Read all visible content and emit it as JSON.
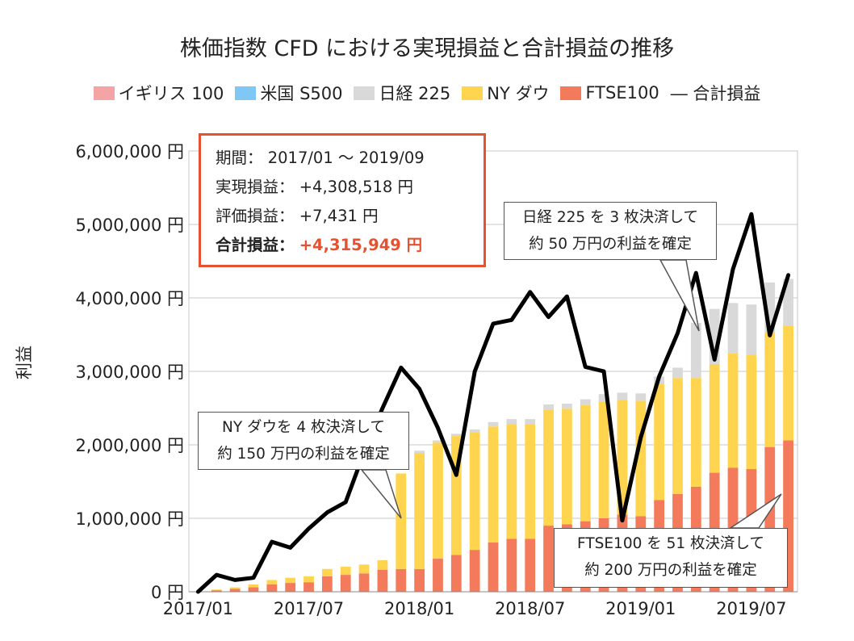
{
  "title": "株価指数 CFD における実現損益と合計損益の推移",
  "legend": {
    "uk100": "イギリス 100",
    "us500": "米国 S500",
    "nikkei": "日経 225",
    "ny": "NY ダウ",
    "ftse": "FTSE100",
    "total": "― 合計損益"
  },
  "ylabel": "利益",
  "summary": {
    "period_label": "期間：",
    "period_value": "2017/01 ～ 2019/09",
    "realized_label": "実現損益：",
    "realized_value": "+4,308,518 円",
    "unrealized_label": "評価損益：",
    "unrealized_value": "+7,431 円",
    "total_label": "合計損益：",
    "total_value": "+4,315,949 円"
  },
  "callouts": {
    "nikkei_line1": "日経 225 を 3 枚決済して",
    "nikkei_line2": "約 50 万円の利益を確定",
    "ny_line1": "NY ダウを 4 枚決済して",
    "ny_line2": "約 150 万円の利益を確定",
    "ftse_line1": "FTSE100 を 51 枚決済して",
    "ftse_line2": "約 200 万円の利益を確定"
  },
  "colors": {
    "uk100": "#f4a4a4",
    "us500": "#7fc8f5",
    "nikkei": "#d9d9d9",
    "ny": "#ffd54f",
    "ftse": "#f37b5b",
    "total": "#000000",
    "accent": "#e8512f"
  },
  "chart_data": {
    "type": "bar",
    "stacked": true,
    "categories": [
      "2017/01",
      "2017/02",
      "2017/03",
      "2017/04",
      "2017/05",
      "2017/06",
      "2017/07",
      "2017/08",
      "2017/09",
      "2017/10",
      "2017/11",
      "2017/12",
      "2018/01",
      "2018/02",
      "2018/03",
      "2018/04",
      "2018/05",
      "2018/06",
      "2018/07",
      "2018/08",
      "2018/09",
      "2018/10",
      "2018/11",
      "2018/12",
      "2019/01",
      "2019/02",
      "2019/03",
      "2019/04",
      "2019/05",
      "2019/06",
      "2019/07",
      "2019/08",
      "2019/09"
    ],
    "x_tick_labels": [
      "2017/01",
      "2017/07",
      "2018/01",
      "2018/07",
      "2019/01",
      "2019/07"
    ],
    "y_tick_labels": [
      "0 円",
      "1,000,000 円",
      "2,000,000 円",
      "3,000,000 円",
      "4,000,000 円",
      "5,000,000 円",
      "6,000,000 円"
    ],
    "ylim": [
      0,
      6000000
    ],
    "ylabel": "利益",
    "series": [
      {
        "name": "FTSE100",
        "key": "ftse",
        "values": [
          0,
          20000,
          40000,
          60000,
          100000,
          120000,
          130000,
          210000,
          230000,
          250000,
          300000,
          310000,
          310000,
          450000,
          500000,
          570000,
          670000,
          720000,
          720000,
          900000,
          920000,
          960000,
          1000000,
          1050000,
          1030000,
          1250000,
          1330000,
          1430000,
          1620000,
          1690000,
          1670000,
          1970000,
          2060000
        ]
      },
      {
        "name": "NY ダウ",
        "key": "ny",
        "values": [
          0,
          10000,
          20000,
          40000,
          60000,
          70000,
          80000,
          100000,
          110000,
          120000,
          130000,
          1300000,
          1580000,
          1580000,
          1620000,
          1600000,
          1580000,
          1560000,
          1560000,
          1580000,
          1570000,
          1580000,
          1590000,
          1560000,
          1570000,
          1580000,
          1580000,
          1480000,
          1480000,
          1560000,
          1560000,
          1560000,
          1560000
        ]
      },
      {
        "name": "日経 225",
        "key": "nikkei",
        "values": [
          0,
          0,
          0,
          0,
          0,
          0,
          0,
          0,
          0,
          0,
          0,
          0,
          30000,
          30000,
          30000,
          40000,
          60000,
          70000,
          70000,
          70000,
          70000,
          80000,
          100000,
          100000,
          100000,
          100000,
          140000,
          750000,
          750000,
          680000,
          680000,
          680000,
          640000
        ]
      },
      {
        "name": "米国 S500",
        "key": "us500",
        "values": [
          0,
          0,
          0,
          0,
          0,
          0,
          0,
          0,
          0,
          0,
          0,
          0,
          0,
          0,
          0,
          0,
          0,
          0,
          0,
          0,
          0,
          0,
          0,
          0,
          0,
          0,
          0,
          0,
          0,
          0,
          0,
          0,
          0
        ]
      },
      {
        "name": "イギリス 100",
        "key": "uk100",
        "values": [
          0,
          0,
          0,
          0,
          0,
          0,
          0,
          0,
          0,
          0,
          0,
          0,
          0,
          0,
          0,
          0,
          0,
          0,
          0,
          0,
          0,
          0,
          0,
          0,
          0,
          0,
          0,
          0,
          0,
          0,
          0,
          0,
          0
        ]
      }
    ],
    "line": {
      "name": "合計損益",
      "values": [
        0,
        230000,
        160000,
        190000,
        680000,
        600000,
        860000,
        1080000,
        1220000,
        1900000,
        2500000,
        3050000,
        2760000,
        2230000,
        1590000,
        3000000,
        3650000,
        3700000,
        4080000,
        3740000,
        4020000,
        3060000,
        3000000,
        970000,
        2100000,
        2930000,
        3520000,
        4340000,
        3160000,
        4390000,
        5140000,
        3490000,
        4310000
      ]
    }
  }
}
